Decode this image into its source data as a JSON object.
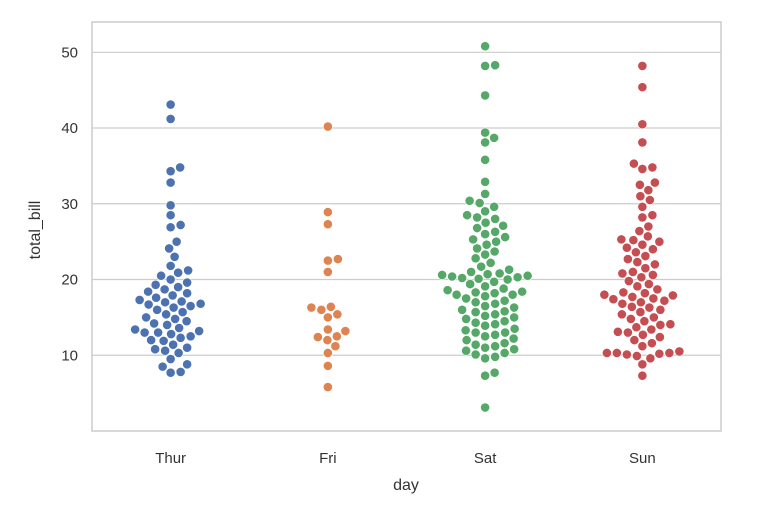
{
  "chart_data": {
    "type": "scatter",
    "subtype": "swarm",
    "xlabel": "day",
    "ylabel": "total_bill",
    "categories": [
      "Thur",
      "Fri",
      "Sat",
      "Sun"
    ],
    "yticks": [
      10,
      20,
      30,
      40,
      50
    ],
    "ylim": [
      0,
      54
    ],
    "grid": true,
    "colors": [
      "#4c72b0",
      "#dd8452",
      "#55a868",
      "#c44e52"
    ],
    "series": [
      {
        "category": "Thur",
        "values": [
          7.7,
          7.8,
          8.5,
          8.8,
          9.5,
          10.3,
          10.6,
          10.8,
          11.0,
          11.4,
          11.9,
          12.0,
          12.3,
          12.5,
          12.8,
          13.0,
          13.0,
          13.2,
          13.4,
          13.6,
          14.0,
          14.2,
          14.5,
          14.8,
          15.0,
          15.4,
          15.7,
          16.0,
          16.3,
          16.5,
          16.7,
          16.8,
          17.0,
          17.1,
          17.3,
          17.6,
          17.9,
          18.2,
          18.4,
          18.7,
          19.0,
          19.3,
          19.6,
          20.0,
          20.5,
          20.9,
          21.2,
          21.8,
          23.0,
          24.1,
          25.0,
          26.9,
          27.2,
          28.5,
          29.8,
          32.8,
          34.3,
          34.8,
          41.2,
          43.1
        ]
      },
      {
        "category": "Fri",
        "values": [
          5.8,
          8.6,
          10.3,
          11.2,
          12.0,
          12.4,
          12.5,
          13.2,
          13.4,
          15.0,
          15.4,
          16.0,
          16.3,
          16.4,
          21.0,
          22.5,
          22.7,
          27.3,
          28.9,
          40.2
        ]
      },
      {
        "category": "Sat",
        "values": [
          3.1,
          7.3,
          7.7,
          9.6,
          9.8,
          10.1,
          10.3,
          10.6,
          10.8,
          11.0,
          11.2,
          11.4,
          11.6,
          12.0,
          12.2,
          12.5,
          12.7,
          13.0,
          13.0,
          13.3,
          13.5,
          13.9,
          14.1,
          14.3,
          14.5,
          14.8,
          15.0,
          15.2,
          15.4,
          15.7,
          15.8,
          16.0,
          16.3,
          16.5,
          16.8,
          17.0,
          17.2,
          17.5,
          17.8,
          18.0,
          18.0,
          18.2,
          18.3,
          18.4,
          18.6,
          18.8,
          19.1,
          19.4,
          19.7,
          20.0,
          20.1,
          20.2,
          20.3,
          20.4,
          20.5,
          20.6,
          20.7,
          20.8,
          21.0,
          21.3,
          21.7,
          22.2,
          22.8,
          23.3,
          23.7,
          24.1,
          24.6,
          25.0,
          25.3,
          25.6,
          26.0,
          26.3,
          26.8,
          27.1,
          27.5,
          28.0,
          28.2,
          28.5,
          29.0,
          29.6,
          30.1,
          30.4,
          31.3,
          32.9,
          35.8,
          38.1,
          38.7,
          39.4,
          44.3,
          48.2,
          48.3,
          50.8
        ]
      },
      {
        "category": "Sun",
        "values": [
          7.3,
          8.8,
          9.6,
          9.9,
          10.1,
          10.2,
          10.3,
          10.3,
          10.3,
          10.5,
          11.2,
          11.6,
          12.0,
          12.4,
          12.7,
          13.0,
          13.1,
          13.4,
          13.7,
          14.0,
          14.1,
          14.5,
          14.8,
          15.0,
          15.4,
          15.7,
          16.0,
          16.3,
          16.4,
          16.8,
          17.0,
          17.2,
          17.4,
          17.5,
          17.7,
          17.9,
          18.0,
          18.2,
          18.3,
          18.7,
          19.1,
          19.4,
          19.8,
          20.3,
          20.6,
          20.8,
          21.0,
          21.5,
          22.0,
          22.3,
          22.7,
          23.1,
          23.6,
          24.0,
          24.2,
          24.6,
          25.0,
          25.2,
          25.3,
          25.7,
          26.4,
          27.0,
          28.2,
          28.5,
          29.6,
          30.5,
          31.0,
          31.8,
          32.5,
          32.8,
          34.6,
          34.8,
          35.3,
          38.1,
          40.5,
          45.4,
          48.2
        ]
      }
    ]
  }
}
